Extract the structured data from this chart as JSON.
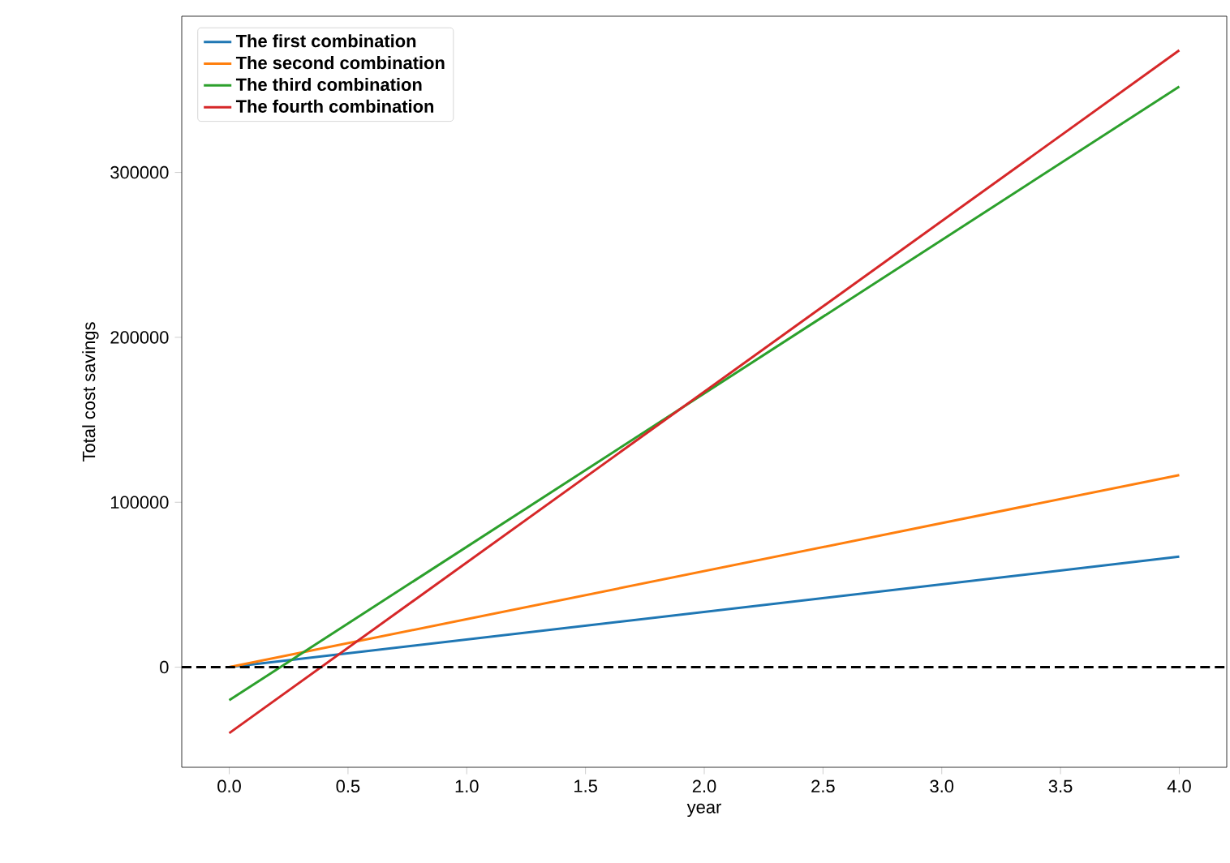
{
  "chart_data": {
    "type": "line",
    "xlabel": "year",
    "ylabel": "Total cost savings",
    "x": [
      0,
      4
    ],
    "series": [
      {
        "name": "The first combination",
        "color": "#1f77b4",
        "values": [
          0,
          67000
        ]
      },
      {
        "name": "The second combination",
        "color": "#ff7f0e",
        "values": [
          0,
          116500
        ]
      },
      {
        "name": "The third combination",
        "color": "#2ca02c",
        "values": [
          -20000,
          352000
        ]
      },
      {
        "name": "The fourth combination",
        "color": "#d62728",
        "values": [
          -40000,
          374000
        ]
      }
    ],
    "xlim": [
      -0.2,
      4.2
    ],
    "ylim": [
      -60700,
      394700
    ],
    "xticks": [
      {
        "value": 0,
        "label": "0.0"
      },
      {
        "value": 0.5,
        "label": "0.5"
      },
      {
        "value": 1,
        "label": "1.0"
      },
      {
        "value": 1.5,
        "label": "1.5"
      },
      {
        "value": 2,
        "label": "2.0"
      },
      {
        "value": 2.5,
        "label": "2.5"
      },
      {
        "value": 3,
        "label": "3.0"
      },
      {
        "value": 3.5,
        "label": "3.5"
      },
      {
        "value": 4,
        "label": "4.0"
      }
    ],
    "yticks": [
      0,
      100000,
      200000,
      300000
    ],
    "ref_lines": [
      {
        "axis": "y",
        "value": 0,
        "color": "#000000",
        "line_style": "dashed"
      }
    ],
    "legend": "top left",
    "grid": false,
    "marker": "none",
    "line_style": "solid"
  }
}
